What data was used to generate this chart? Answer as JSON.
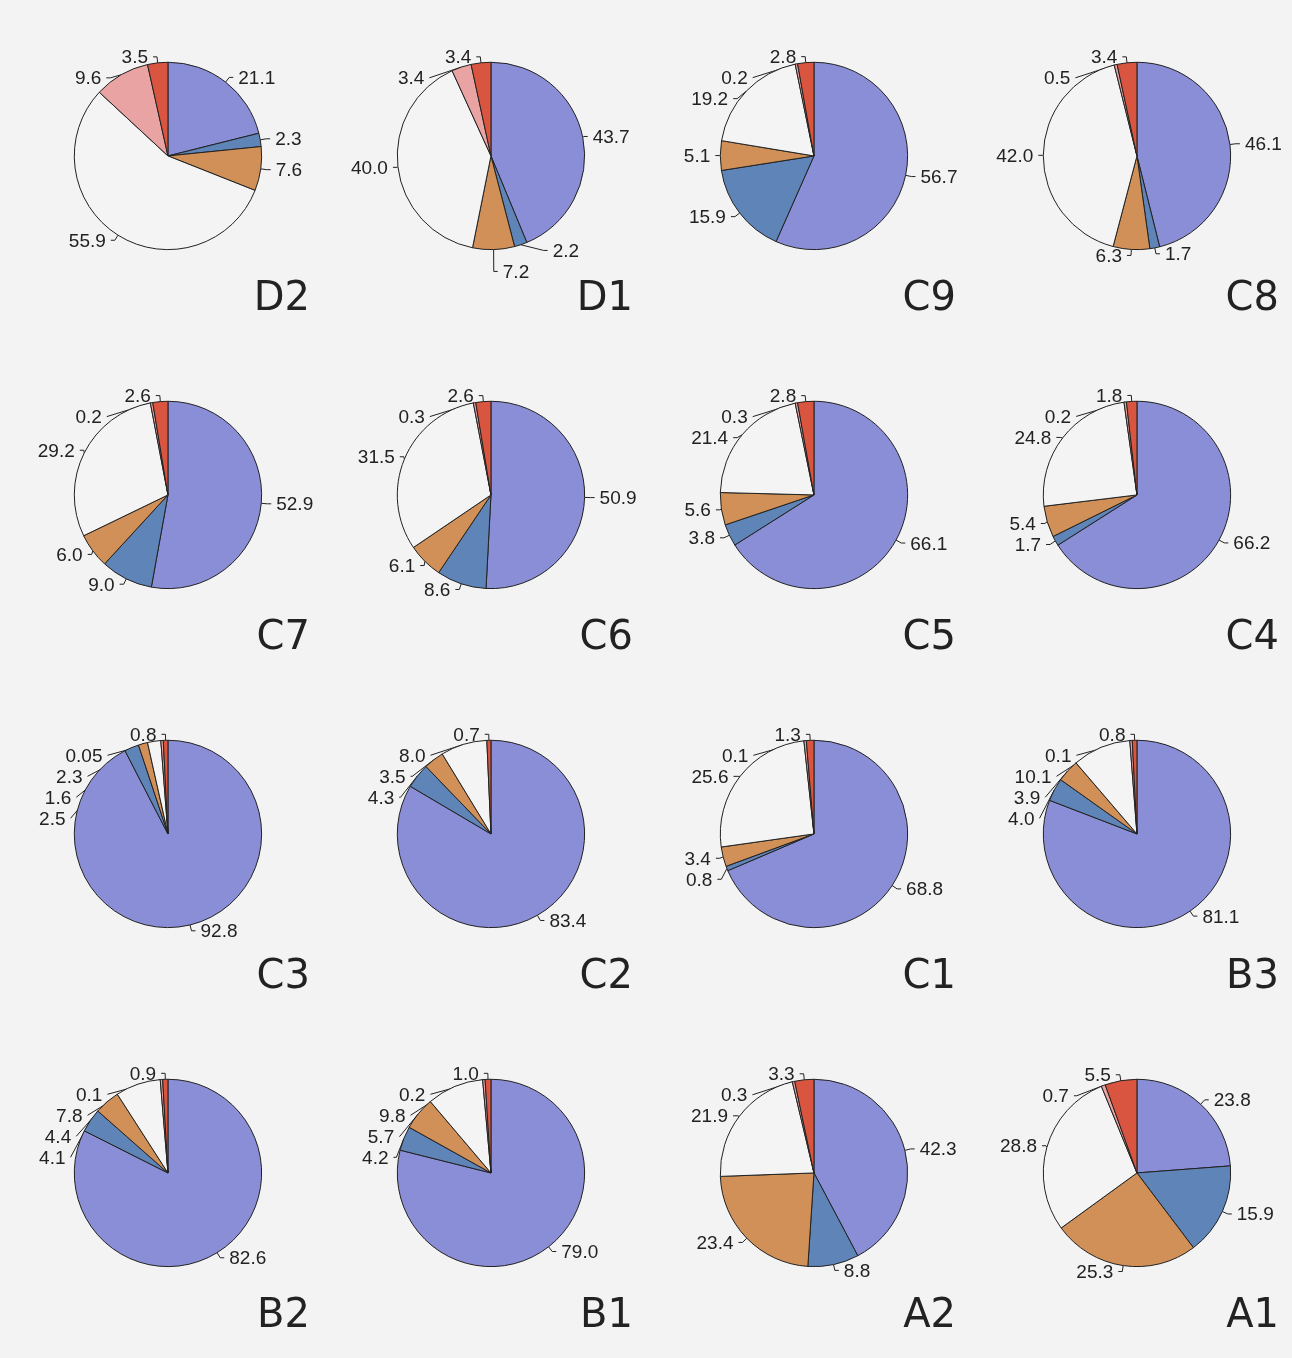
{
  "chart_data": [
    {
      "type": "pie",
      "title": "D2",
      "categories": [
        null,
        null,
        null,
        null,
        null,
        null
      ],
      "values": [
        21.1,
        2.3,
        7.6,
        55.9,
        9.6,
        3.5
      ],
      "value_labels": [
        "21.1",
        "2.3",
        "7.6",
        "55.9",
        "9.6",
        "3.5"
      ],
      "colors": [
        "#8a8ed6",
        "#5f84b8",
        "#d09058",
        "#f4f4f4",
        "#eaa3a3",
        "#d9553f"
      ]
    },
    {
      "type": "pie",
      "title": "D1",
      "categories": [
        null,
        null,
        null,
        null,
        null,
        null
      ],
      "values": [
        43.7,
        2.2,
        7.2,
        40.0,
        3.4,
        3.4
      ],
      "value_labels": [
        "43.7",
        "2.2",
        "7.2",
        "40.0",
        "3.4",
        "3.4"
      ],
      "colors": [
        "#8a8ed6",
        "#5f84b8",
        "#d09058",
        "#f4f4f4",
        "#eaa3a3",
        "#d9553f"
      ]
    },
    {
      "type": "pie",
      "title": "C9",
      "categories": [
        null,
        null,
        null,
        null,
        null,
        null
      ],
      "values": [
        56.7,
        15.9,
        5.1,
        19.2,
        0.2,
        2.8
      ],
      "value_labels": [
        "56.7",
        "15.9",
        "5.1",
        "19.2",
        "0.2",
        "2.8"
      ],
      "colors": [
        "#8a8ed6",
        "#5f84b8",
        "#d09058",
        "#f4f4f4",
        "#eaa3a3",
        "#d9553f"
      ]
    },
    {
      "type": "pie",
      "title": "C8",
      "categories": [
        null,
        null,
        null,
        null,
        null,
        null
      ],
      "values": [
        46.1,
        1.7,
        6.3,
        42.0,
        0.5,
        3.4
      ],
      "value_labels": [
        "46.1",
        "1.7",
        "6.3",
        "42.0",
        "0.5",
        "3.4"
      ],
      "colors": [
        "#8a8ed6",
        "#5f84b8",
        "#d09058",
        "#f4f4f4",
        "#eaa3a3",
        "#d9553f"
      ]
    },
    {
      "type": "pie",
      "title": "C7",
      "categories": [
        null,
        null,
        null,
        null,
        null,
        null
      ],
      "values": [
        52.9,
        9.0,
        6.0,
        29.2,
        0.2,
        2.6
      ],
      "value_labels": [
        "52.9",
        "9.0",
        "6.0",
        "29.2",
        "0.2",
        "2.6"
      ],
      "colors": [
        "#8a8ed6",
        "#5f84b8",
        "#d09058",
        "#f4f4f4",
        "#eaa3a3",
        "#d9553f"
      ]
    },
    {
      "type": "pie",
      "title": "C6",
      "categories": [
        null,
        null,
        null,
        null,
        null,
        null
      ],
      "values": [
        50.9,
        8.6,
        6.1,
        31.5,
        0.3,
        2.6
      ],
      "value_labels": [
        "50.9",
        "8.6",
        "6.1",
        "31.5",
        "0.3",
        "2.6"
      ],
      "colors": [
        "#8a8ed6",
        "#5f84b8",
        "#d09058",
        "#f4f4f4",
        "#eaa3a3",
        "#d9553f"
      ]
    },
    {
      "type": "pie",
      "title": "C5",
      "categories": [
        null,
        null,
        null,
        null,
        null,
        null
      ],
      "values": [
        66.1,
        3.8,
        5.6,
        21.4,
        0.3,
        2.8
      ],
      "value_labels": [
        "66.1",
        "3.8",
        "5.6",
        "21.4",
        "0.3",
        "2.8"
      ],
      "colors": [
        "#8a8ed6",
        "#5f84b8",
        "#d09058",
        "#f4f4f4",
        "#eaa3a3",
        "#d9553f"
      ]
    },
    {
      "type": "pie",
      "title": "C4",
      "categories": [
        null,
        null,
        null,
        null,
        null,
        null
      ],
      "values": [
        66.2,
        1.7,
        5.4,
        24.8,
        0.2,
        1.8
      ],
      "value_labels": [
        "66.2",
        "1.7",
        "5.4",
        "24.8",
        "0.2",
        "1.8"
      ],
      "colors": [
        "#8a8ed6",
        "#5f84b8",
        "#d09058",
        "#f4f4f4",
        "#eaa3a3",
        "#d9553f"
      ]
    },
    {
      "type": "pie",
      "title": "C3",
      "categories": [
        null,
        null,
        null,
        null,
        null,
        null
      ],
      "values": [
        92.8,
        2.5,
        1.6,
        2.3,
        0.05,
        0.8
      ],
      "value_labels": [
        "92.8",
        "2.5",
        "1.6",
        "2.3",
        "0.05",
        "0.8"
      ],
      "colors": [
        "#8a8ed6",
        "#5f84b8",
        "#d09058",
        "#f4f4f4",
        "#eaa3a3",
        "#d9553f"
      ]
    },
    {
      "type": "pie",
      "title": "C2",
      "categories": [
        null,
        null,
        null,
        null,
        null,
        null
      ],
      "values": [
        83.4,
        4.3,
        3.5,
        8.0,
        null,
        0.7
      ],
      "value_labels": [
        "83.4",
        "4.3",
        "3.5",
        "8.0",
        null,
        "0.7"
      ],
      "colors": [
        "#8a8ed6",
        "#5f84b8",
        "#d09058",
        "#f4f4f4",
        "#eaa3a3",
        "#d9553f"
      ]
    },
    {
      "type": "pie",
      "title": "C1",
      "categories": [
        null,
        null,
        null,
        null,
        null,
        null
      ],
      "values": [
        68.8,
        0.8,
        3.4,
        25.6,
        0.1,
        1.3
      ],
      "value_labels": [
        "68.8",
        "0.8",
        "3.4",
        "25.6",
        "0.1",
        "1.3"
      ],
      "colors": [
        "#8a8ed6",
        "#5f84b8",
        "#d09058",
        "#f4f4f4",
        "#eaa3a3",
        "#d9553f"
      ]
    },
    {
      "type": "pie",
      "title": "B3",
      "categories": [
        null,
        null,
        null,
        null,
        null,
        null
      ],
      "values": [
        81.1,
        4.0,
        3.9,
        10.1,
        0.1,
        0.8
      ],
      "value_labels": [
        "81.1",
        "4.0",
        "3.9",
        "10.1",
        "0.1",
        "0.8"
      ],
      "colors": [
        "#8a8ed6",
        "#5f84b8",
        "#d09058",
        "#f4f4f4",
        "#eaa3a3",
        "#d9553f"
      ]
    },
    {
      "type": "pie",
      "title": "B2",
      "categories": [
        null,
        null,
        null,
        null,
        null,
        null
      ],
      "values": [
        82.6,
        4.1,
        4.4,
        7.8,
        0.1,
        0.9
      ],
      "value_labels": [
        "82.6",
        "4.1",
        "4.4",
        "7.8",
        "0.1",
        "0.9"
      ],
      "colors": [
        "#8a8ed6",
        "#5f84b8",
        "#d09058",
        "#f4f4f4",
        "#eaa3a3",
        "#d9553f"
      ]
    },
    {
      "type": "pie",
      "title": "B1",
      "categories": [
        null,
        null,
        null,
        null,
        null,
        null
      ],
      "values": [
        79.0,
        4.2,
        5.7,
        9.8,
        0.2,
        1.0
      ],
      "value_labels": [
        "79.0",
        "4.2",
        "5.7",
        "9.8",
        "0.2",
        "1.0"
      ],
      "colors": [
        "#8a8ed6",
        "#5f84b8",
        "#d09058",
        "#f4f4f4",
        "#eaa3a3",
        "#d9553f"
      ]
    },
    {
      "type": "pie",
      "title": "A2",
      "categories": [
        null,
        null,
        null,
        null,
        null,
        null
      ],
      "values": [
        42.3,
        8.8,
        23.4,
        21.9,
        0.3,
        3.3
      ],
      "value_labels": [
        "42.3",
        "8.8",
        "23.4",
        "21.9",
        "0.3",
        "3.3"
      ],
      "colors": [
        "#8a8ed6",
        "#5f84b8",
        "#d09058",
        "#f4f4f4",
        "#eaa3a3",
        "#d9553f"
      ]
    },
    {
      "type": "pie",
      "title": "A1",
      "categories": [
        null,
        null,
        null,
        null,
        null,
        null
      ],
      "values": [
        23.8,
        15.9,
        25.3,
        28.8,
        0.7,
        5.5
      ],
      "value_labels": [
        "23.8",
        "15.9",
        "25.3",
        "28.8",
        "0.7",
        "5.5"
      ],
      "colors": [
        "#8a8ed6",
        "#5f84b8",
        "#d09058",
        "#f4f4f4",
        "#eaa3a3",
        "#d9553f"
      ]
    }
  ]
}
